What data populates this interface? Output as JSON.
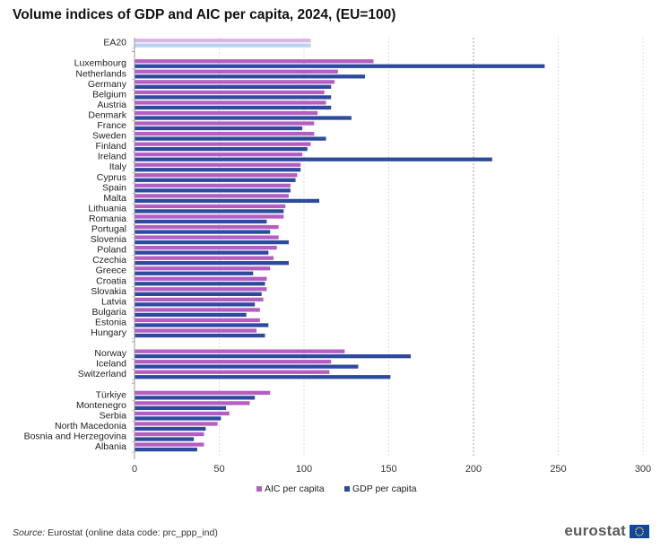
{
  "title": "Volume indices of GDP and AIC per capita, 2024, (EU=100)",
  "source": {
    "label": "Source:",
    "text": "Eurostat (online data code: prc_ppp_ind)"
  },
  "brand": "eurostat",
  "colors": {
    "aic": "#b45ec2",
    "gdp": "#2e4a9e",
    "aic_ea": "#d9b8e6",
    "gdp_ea": "#b9d3f2",
    "grid": "#c8c8c8",
    "reference_line": "#888888"
  },
  "chart_data": {
    "type": "bar",
    "orientation": "horizontal",
    "title": "Volume indices of GDP and AIC per capita, 2024, (EU=100)",
    "xlim": [
      0,
      300
    ],
    "x_ticks": [
      0,
      50,
      100,
      150,
      200,
      250,
      300
    ],
    "grid": true,
    "legend_position": "bottom",
    "series": [
      {
        "name": "AIC per capita",
        "color": "#b45ec2"
      },
      {
        "name": "GDP per capita",
        "color": "#2e4a9e"
      }
    ],
    "groups": [
      {
        "categories": [
          "EA20"
        ],
        "aic": [
          104
        ],
        "gdp": [
          104
        ]
      },
      {
        "categories": [
          "Luxembourg",
          "Netherlands",
          "Germany",
          "Belgium",
          "Austria",
          "Denmark",
          "France",
          "Sweden",
          "Finland",
          "Ireland",
          "Italy",
          "Cyprus",
          "Spain",
          "Malta",
          "Lithuania",
          "Romania",
          "Portugal",
          "Slovenia",
          "Poland",
          "Czechia",
          "Greece",
          "Croatia",
          "Slovakia",
          "Latvia",
          "Bulgaria",
          "Estonia",
          "Hungary"
        ],
        "aic": [
          141,
          120,
          118,
          112,
          113,
          108,
          106,
          106,
          104,
          99,
          98,
          96,
          92,
          91,
          89,
          88,
          85,
          85,
          84,
          82,
          80,
          78,
          78,
          76,
          74,
          74,
          72
        ],
        "gdp": [
          242,
          136,
          116,
          116,
          116,
          128,
          99,
          113,
          102,
          211,
          98,
          95,
          92,
          109,
          88,
          78,
          80,
          91,
          79,
          91,
          70,
          77,
          75,
          71,
          66,
          79,
          77
        ]
      },
      {
        "categories": [
          "Norway",
          "Iceland",
          "Switzerland"
        ],
        "aic": [
          124,
          116,
          115
        ],
        "gdp": [
          163,
          132,
          151
        ]
      },
      {
        "categories": [
          "Türkiye",
          "Montenegro",
          "Serbia",
          "North Macedonia",
          "Bosnia and Herzegovina",
          "Albania"
        ],
        "aic": [
          80,
          68,
          56,
          49,
          41,
          41
        ],
        "gdp": [
          71,
          54,
          51,
          42,
          35,
          37
        ]
      }
    ]
  }
}
